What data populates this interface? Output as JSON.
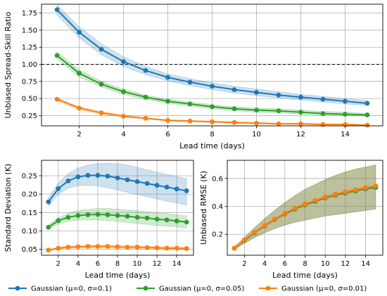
{
  "colors": {
    "blue": "#1f77b4",
    "green": "#2ca02c",
    "orange": "#ff7f0e"
  },
  "legend": [
    {
      "label": "Gaussian (μ=0, σ=0.1)",
      "color": "#1f77b4"
    },
    {
      "label": "Gaussian (μ=0, σ=0.05)",
      "color": "#2ca02c"
    },
    {
      "label": "Gaussian (μ=0, σ=0.01)",
      "color": "#ff7f0e"
    }
  ],
  "chart_data": [
    {
      "type": "line",
      "xlabel": "Lead time (days)",
      "ylabel": "Unbiased Spread-Skill Ratio",
      "xlim": [
        0.3,
        15.7
      ],
      "ylim": [
        0.1,
        1.88
      ],
      "xticks": [
        2,
        4,
        6,
        8,
        10,
        12,
        14
      ],
      "yticks": [
        0.25,
        0.5,
        0.75,
        1.0,
        1.25,
        1.5,
        1.75
      ],
      "ytick_labels": [
        "0.25",
        "0.50",
        "0.75",
        "1.00",
        "1.25",
        "1.50",
        "1.75"
      ],
      "grid": true,
      "reference_line": {
        "y": 1.0,
        "style": "dashed"
      },
      "x": [
        1,
        2,
        3,
        4,
        5,
        6,
        7,
        8,
        9,
        10,
        11,
        12,
        13,
        14,
        15
      ],
      "series": [
        {
          "name": "Gaussian (μ=0, σ=0.1)",
          "color": "#1f77b4",
          "values": [
            1.8,
            1.47,
            1.22,
            1.04,
            0.91,
            0.81,
            0.74,
            0.68,
            0.63,
            0.59,
            0.55,
            0.52,
            0.49,
            0.46,
            0.43
          ],
          "band_low": [
            1.72,
            1.39,
            1.14,
            0.97,
            0.85,
            0.76,
            0.69,
            0.63,
            0.58,
            0.54,
            0.51,
            0.48,
            0.45,
            0.42,
            0.4
          ],
          "band_high": [
            1.87,
            1.55,
            1.3,
            1.11,
            0.97,
            0.86,
            0.79,
            0.73,
            0.68,
            0.64,
            0.6,
            0.56,
            0.53,
            0.5,
            0.47
          ]
        },
        {
          "name": "Gaussian (μ=0, σ=0.05)",
          "color": "#2ca02c",
          "values": [
            1.13,
            0.87,
            0.71,
            0.6,
            0.52,
            0.46,
            0.42,
            0.38,
            0.35,
            0.33,
            0.32,
            0.3,
            0.28,
            0.27,
            0.26
          ],
          "band_low": [
            1.08,
            0.82,
            0.67,
            0.56,
            0.49,
            0.43,
            0.39,
            0.35,
            0.32,
            0.3,
            0.29,
            0.27,
            0.26,
            0.25,
            0.24
          ],
          "band_high": [
            1.18,
            0.92,
            0.75,
            0.64,
            0.55,
            0.49,
            0.45,
            0.41,
            0.38,
            0.36,
            0.35,
            0.33,
            0.31,
            0.3,
            0.28
          ]
        },
        {
          "name": "Gaussian (μ=0, σ=0.01)",
          "color": "#ff7f0e",
          "values": [
            0.49,
            0.36,
            0.29,
            0.24,
            0.21,
            0.18,
            0.17,
            0.16,
            0.15,
            0.14,
            0.13,
            0.13,
            0.12,
            0.12,
            0.11
          ],
          "band_low": [
            0.47,
            0.34,
            0.27,
            0.23,
            0.2,
            0.17,
            0.16,
            0.15,
            0.14,
            0.13,
            0.12,
            0.12,
            0.11,
            0.11,
            0.1
          ],
          "band_high": [
            0.51,
            0.38,
            0.31,
            0.26,
            0.22,
            0.19,
            0.18,
            0.17,
            0.16,
            0.15,
            0.14,
            0.14,
            0.13,
            0.13,
            0.12
          ]
        }
      ]
    },
    {
      "type": "line",
      "xlabel": "Lead time (days)",
      "ylabel": "Standard Deviation (K)",
      "xlim": [
        0.3,
        15.7
      ],
      "ylim": [
        0.034,
        0.292
      ],
      "xticks": [
        2,
        4,
        6,
        8,
        10,
        12,
        14
      ],
      "yticks": [
        0.05,
        0.1,
        0.15,
        0.2,
        0.25
      ],
      "ytick_labels": [
        "0.05",
        "0.10",
        "0.15",
        "0.20",
        "0.25"
      ],
      "grid": true,
      "x": [
        1,
        2,
        3,
        4,
        5,
        6,
        7,
        8,
        9,
        10,
        11,
        12,
        13,
        14,
        15
      ],
      "series": [
        {
          "name": "Gaussian (μ=0, σ=0.1)",
          "color": "#1f77b4",
          "values": [
            0.179,
            0.215,
            0.236,
            0.247,
            0.251,
            0.251,
            0.249,
            0.244,
            0.239,
            0.234,
            0.229,
            0.224,
            0.219,
            0.214,
            0.209
          ],
          "band_low": [
            0.168,
            0.2,
            0.216,
            0.223,
            0.224,
            0.222,
            0.217,
            0.211,
            0.205,
            0.199,
            0.193,
            0.187,
            0.181,
            0.176,
            0.17
          ],
          "band_high": [
            0.19,
            0.23,
            0.256,
            0.271,
            0.279,
            0.283,
            0.284,
            0.283,
            0.279,
            0.273,
            0.266,
            0.26,
            0.254,
            0.248,
            0.242
          ]
        },
        {
          "name": "Gaussian (μ=0, σ=0.05)",
          "color": "#2ca02c",
          "values": [
            0.11,
            0.128,
            0.137,
            0.142,
            0.144,
            0.145,
            0.144,
            0.142,
            0.14,
            0.137,
            0.135,
            0.132,
            0.13,
            0.127,
            0.124
          ],
          "band_low": [
            0.104,
            0.12,
            0.126,
            0.129,
            0.13,
            0.13,
            0.128,
            0.126,
            0.123,
            0.12,
            0.118,
            0.115,
            0.113,
            0.111,
            0.108
          ],
          "band_high": [
            0.116,
            0.136,
            0.148,
            0.155,
            0.159,
            0.161,
            0.161,
            0.159,
            0.157,
            0.155,
            0.152,
            0.149,
            0.147,
            0.144,
            0.141
          ]
        },
        {
          "name": "Gaussian (μ=0, σ=0.01)",
          "color": "#ff7f0e",
          "values": [
            0.048,
            0.053,
            0.056,
            0.057,
            0.058,
            0.058,
            0.058,
            0.057,
            0.056,
            0.056,
            0.055,
            0.054,
            0.053,
            0.053,
            0.052
          ],
          "band_low": [
            0.046,
            0.05,
            0.053,
            0.054,
            0.054,
            0.054,
            0.053,
            0.053,
            0.052,
            0.051,
            0.05,
            0.05,
            0.049,
            0.048,
            0.048
          ],
          "band_high": [
            0.05,
            0.056,
            0.059,
            0.06,
            0.061,
            0.062,
            0.062,
            0.061,
            0.061,
            0.06,
            0.059,
            0.058,
            0.058,
            0.057,
            0.056
          ]
        }
      ]
    },
    {
      "type": "line",
      "xlabel": "Lead time (days)",
      "ylabel": "Unbiased RMSE (K)",
      "xlim": [
        0.3,
        15.7
      ],
      "ylim": [
        0.05,
        0.73
      ],
      "xticks": [
        2,
        4,
        6,
        8,
        10,
        12,
        14
      ],
      "yticks": [
        0.2,
        0.4,
        0.6
      ],
      "ytick_labels": [
        "0.2",
        "0.4",
        "0.6"
      ],
      "grid": true,
      "x": [
        1,
        2,
        3,
        4,
        5,
        6,
        7,
        8,
        9,
        10,
        11,
        12,
        13,
        14,
        15
      ],
      "series": [
        {
          "name": "Gaussian (μ=0, σ=0.1)",
          "color": "#1f77b4",
          "values": [
            0.1,
            0.155,
            0.21,
            0.26,
            0.305,
            0.345,
            0.38,
            0.41,
            0.435,
            0.46,
            0.48,
            0.495,
            0.51,
            0.525,
            0.535
          ],
          "band_low": [
            0.09,
            0.135,
            0.175,
            0.21,
            0.24,
            0.265,
            0.285,
            0.3,
            0.315,
            0.33,
            0.34,
            0.35,
            0.36,
            0.37,
            0.38
          ],
          "band_high": [
            0.11,
            0.175,
            0.245,
            0.31,
            0.37,
            0.425,
            0.475,
            0.52,
            0.555,
            0.59,
            0.62,
            0.645,
            0.665,
            0.68,
            0.695
          ]
        },
        {
          "name": "Gaussian (μ=0, σ=0.05)",
          "color": "#2ca02c",
          "values": [
            0.1,
            0.157,
            0.212,
            0.262,
            0.307,
            0.347,
            0.382,
            0.412,
            0.438,
            0.462,
            0.482,
            0.498,
            0.512,
            0.527,
            0.538
          ],
          "band_low": [
            0.09,
            0.137,
            0.177,
            0.212,
            0.242,
            0.267,
            0.287,
            0.302,
            0.317,
            0.332,
            0.342,
            0.352,
            0.362,
            0.372,
            0.382
          ],
          "band_high": [
            0.11,
            0.177,
            0.247,
            0.312,
            0.372,
            0.427,
            0.477,
            0.522,
            0.557,
            0.592,
            0.622,
            0.647,
            0.667,
            0.682,
            0.697
          ]
        },
        {
          "name": "Gaussian (μ=0, σ=0.01)",
          "color": "#ff7f0e",
          "values": [
            0.1,
            0.16,
            0.215,
            0.265,
            0.31,
            0.352,
            0.388,
            0.418,
            0.443,
            0.468,
            0.488,
            0.505,
            0.52,
            0.535,
            0.548
          ],
          "band_low": [
            0.09,
            0.138,
            0.178,
            0.213,
            0.243,
            0.268,
            0.288,
            0.303,
            0.318,
            0.333,
            0.343,
            0.353,
            0.363,
            0.373,
            0.383
          ],
          "band_high": [
            0.11,
            0.178,
            0.248,
            0.313,
            0.373,
            0.428,
            0.478,
            0.523,
            0.558,
            0.593,
            0.623,
            0.648,
            0.668,
            0.683,
            0.698
          ]
        }
      ]
    }
  ]
}
